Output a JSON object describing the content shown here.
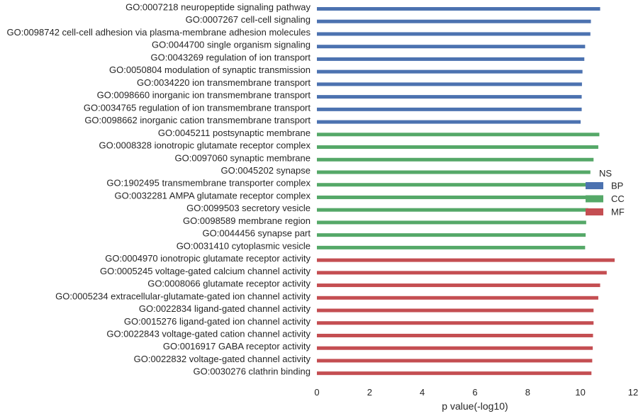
{
  "chart_data": {
    "type": "bar",
    "orientation": "horizontal",
    "categories": [
      "GO:0007218 neuropeptide signaling pathway",
      "GO:0007267 cell-cell signaling",
      "GO:0098742 cell-cell adhesion via plasma-membrane adhesion molecules",
      "GO:0044700 single organism signaling",
      "GO:0043269 regulation of ion transport",
      "GO:0050804 modulation of synaptic transmission",
      "GO:0034220 ion transmembrane transport",
      "GO:0098660 inorganic ion transmembrane transport",
      "GO:0034765 regulation of ion transmembrane transport",
      "GO:0098662 inorganic cation transmembrane transport",
      "GO:0045211 postsynaptic membrane",
      "GO:0008328 ionotropic glutamate receptor complex",
      "GO:0097060 synaptic membrane",
      "GO:0045202 synapse",
      "GO:1902495 transmembrane transporter complex",
      "GO:0032281 AMPA glutamate receptor complex",
      "GO:0099503 secretory vesicle",
      "GO:0098589 membrane region",
      "GO:0044456 synapse part",
      "GO:0031410 cytoplasmic vesicle",
      "GO:0004970 ionotropic glutamate receptor activity",
      "GO:0005245 voltage-gated calcium channel activity",
      "GO:0008066 glutamate receptor activity",
      "GO:0005234 extracellular-glutamate-gated ion channel activity",
      "GO:0022834 ligand-gated channel activity",
      "GO:0015276 ligand-gated ion channel activity",
      "GO:0022843 voltage-gated cation channel activity",
      "GO:0016917 GABA receptor activity",
      "GO:0022832 voltage-gated channel activity",
      "GO:0030276 clathrin binding"
    ],
    "values": [
      10.75,
      10.4,
      10.38,
      10.18,
      10.15,
      10.08,
      10.06,
      10.05,
      10.05,
      10.01,
      10.72,
      10.68,
      10.5,
      10.38,
      10.35,
      10.3,
      10.3,
      10.22,
      10.2,
      10.18,
      11.3,
      11.0,
      10.75,
      10.68,
      10.5,
      10.5,
      10.48,
      10.47,
      10.45,
      10.42
    ],
    "groups": [
      "BP",
      "BP",
      "BP",
      "BP",
      "BP",
      "BP",
      "BP",
      "BP",
      "BP",
      "BP",
      "CC",
      "CC",
      "CC",
      "CC",
      "CC",
      "CC",
      "CC",
      "CC",
      "CC",
      "CC",
      "MF",
      "MF",
      "MF",
      "MF",
      "MF",
      "MF",
      "MF",
      "MF",
      "MF",
      "MF"
    ],
    "xlabel": "p value(-log10)",
    "ylabel": "",
    "xlim": [
      0,
      12
    ],
    "xticks": [
      "0",
      "2",
      "4",
      "6",
      "8",
      "10",
      "12"
    ],
    "grid": false,
    "legend": {
      "title": "NS",
      "placement": "right",
      "entries": [
        {
          "name": "BP",
          "color": "#4c72b0"
        },
        {
          "name": "CC",
          "color": "#55a868"
        },
        {
          "name": "MF",
          "color": "#c44e52"
        }
      ]
    }
  }
}
